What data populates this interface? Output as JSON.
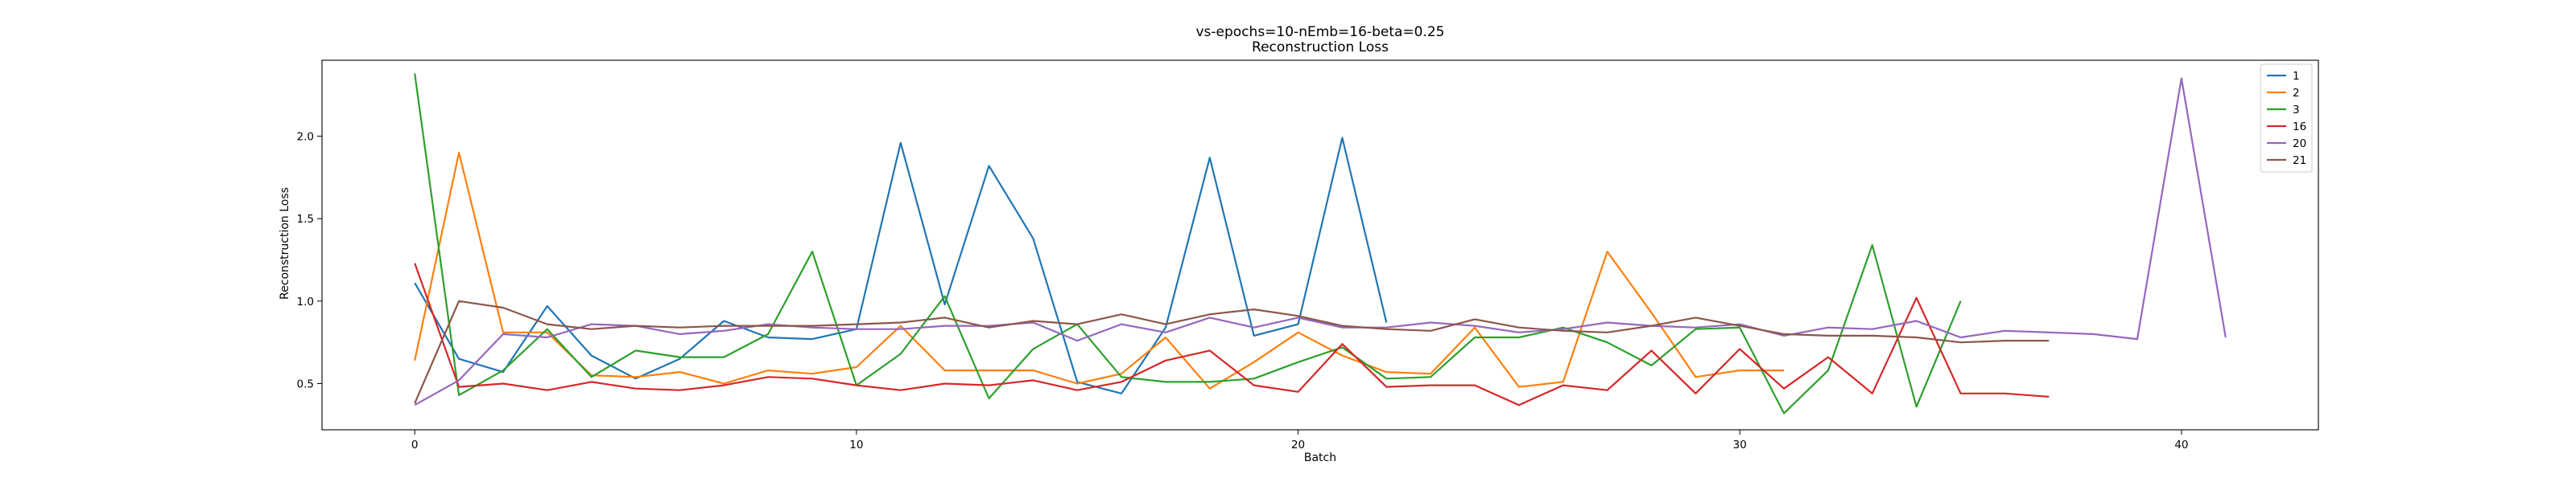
{
  "chart_data": {
    "type": "line",
    "title": "vs-epochs=10-nEmb=16-beta=0.25",
    "subtitle": "Reconstruction Loss",
    "xlabel": "Batch",
    "ylabel": "Reconstruction Loss",
    "xlim": [
      -2.1,
      43.1
    ],
    "ylim": [
      0.22,
      2.46
    ],
    "xticks": [
      0,
      10,
      20,
      30,
      40
    ],
    "yticks": [
      0.5,
      1.0,
      1.5,
      2.0
    ],
    "legend_position": "top-right",
    "grid": false,
    "series": [
      {
        "name": "1",
        "color": "#1f77b4",
        "values": [
          1.11,
          0.65,
          0.57,
          0.97,
          0.67,
          0.53,
          0.65,
          0.88,
          0.78,
          0.77,
          0.83,
          1.96,
          0.98,
          1.82,
          1.38,
          0.51,
          0.44,
          0.84,
          1.87,
          0.79,
          0.86,
          1.99,
          0.87
        ]
      },
      {
        "name": "2",
        "color": "#ff7f0e",
        "values": [
          0.64,
          1.9,
          0.81,
          0.81,
          0.55,
          0.54,
          0.57,
          0.5,
          0.58,
          0.56,
          0.6,
          0.85,
          0.58,
          0.58,
          0.58,
          0.5,
          0.56,
          0.78,
          0.47,
          0.63,
          0.81,
          0.67,
          0.57,
          0.56,
          0.84,
          0.48,
          0.51,
          1.3,
          0.93,
          0.54,
          0.58,
          0.58
        ]
      },
      {
        "name": "3",
        "color": "#2ca02c",
        "values": [
          2.38,
          0.43,
          0.58,
          0.83,
          0.54,
          0.7,
          0.66,
          0.66,
          0.8,
          1.3,
          0.49,
          0.68,
          1.03,
          0.41,
          0.71,
          0.86,
          0.54,
          0.51,
          0.51,
          0.53,
          0.63,
          0.72,
          0.53,
          0.54,
          0.78,
          0.78,
          0.84,
          0.75,
          0.61,
          0.83,
          0.84,
          0.32,
          0.58,
          1.34,
          0.36,
          1.0
        ]
      },
      {
        "name": "16",
        "color": "#d62728",
        "values": [
          1.23,
          0.48,
          0.5,
          0.46,
          0.51,
          0.47,
          0.46,
          0.49,
          0.54,
          0.53,
          0.49,
          0.46,
          0.5,
          0.49,
          0.52,
          0.46,
          0.51,
          0.64,
          0.7,
          0.49,
          0.45,
          0.74,
          0.48,
          0.49,
          0.49,
          0.37,
          0.49,
          0.46,
          0.7,
          0.44,
          0.71,
          0.47,
          0.66,
          0.44,
          1.02,
          0.44,
          0.44,
          0.42
        ]
      },
      {
        "name": "20",
        "color": "#9467bd",
        "values": [
          0.37,
          0.52,
          0.8,
          0.78,
          0.86,
          0.85,
          0.8,
          0.82,
          0.86,
          0.84,
          0.83,
          0.83,
          0.85,
          0.85,
          0.87,
          0.76,
          0.86,
          0.81,
          0.9,
          0.84,
          0.9,
          0.84,
          0.84,
          0.87,
          0.85,
          0.81,
          0.83,
          0.87,
          0.85,
          0.84,
          0.86,
          0.79,
          0.84,
          0.83,
          0.88,
          0.78,
          0.82,
          0.81,
          0.8,
          0.77,
          2.35,
          0.78
        ]
      },
      {
        "name": "21",
        "color": "#8c564b",
        "values": [
          0.38,
          1.0,
          0.96,
          0.86,
          0.83,
          0.85,
          0.84,
          0.85,
          0.85,
          0.85,
          0.86,
          0.87,
          0.9,
          0.84,
          0.88,
          0.86,
          0.92,
          0.86,
          0.92,
          0.95,
          0.91,
          0.85,
          0.83,
          0.82,
          0.89,
          0.84,
          0.82,
          0.81,
          0.85,
          0.9,
          0.85,
          0.8,
          0.79,
          0.79,
          0.78,
          0.75,
          0.76,
          0.76
        ]
      }
    ]
  }
}
